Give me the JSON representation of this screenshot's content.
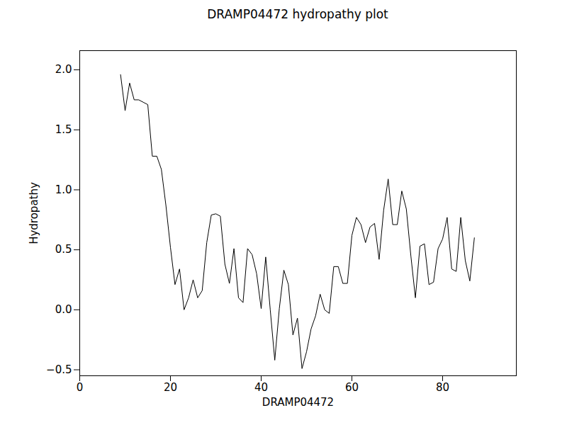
{
  "chart_data": {
    "type": "line",
    "title": "DRAMP04472 hydropathy plot",
    "xlabel": "DRAMP04472",
    "ylabel": "Hydropathy",
    "color": "#000000",
    "grid": false,
    "x": [
      9,
      10,
      11,
      12,
      13,
      14,
      15,
      16,
      17,
      18,
      19,
      20,
      21,
      22,
      23,
      24,
      25,
      26,
      27,
      28,
      29,
      30,
      31,
      32,
      33,
      34,
      35,
      36,
      37,
      38,
      39,
      40,
      41,
      42,
      43,
      44,
      45,
      46,
      47,
      48,
      49,
      50,
      51,
      52,
      53,
      54,
      55,
      56,
      57,
      58,
      59,
      60,
      61,
      62,
      63,
      64,
      65,
      66,
      67,
      68,
      69,
      70,
      71,
      72,
      73,
      74,
      75,
      76,
      77,
      78,
      79,
      80,
      81,
      82,
      83,
      84,
      85,
      86,
      87
    ],
    "values": [
      1.96,
      1.66,
      1.89,
      1.75,
      1.75,
      1.73,
      1.71,
      1.28,
      1.28,
      1.17,
      0.87,
      0.52,
      0.21,
      0.34,
      0.0,
      0.1,
      0.25,
      0.1,
      0.16,
      0.56,
      0.79,
      0.8,
      0.78,
      0.38,
      0.22,
      0.51,
      0.1,
      0.06,
      0.51,
      0.46,
      0.3,
      0.01,
      0.44,
      0.0,
      -0.42,
      0.01,
      0.33,
      0.21,
      -0.21,
      -0.07,
      -0.49,
      -0.35,
      -0.16,
      -0.05,
      0.13,
      0.0,
      -0.03,
      0.36,
      0.36,
      0.22,
      0.22,
      0.62,
      0.77,
      0.71,
      0.56,
      0.69,
      0.72,
      0.42,
      0.83,
      1.09,
      0.71,
      0.71,
      0.99,
      0.84,
      0.45,
      0.1,
      0.53,
      0.55,
      0.21,
      0.23,
      0.51,
      0.59,
      0.77,
      0.34,
      0.32,
      0.77,
      0.41,
      0.24,
      0.6
    ],
    "xlim": [
      0,
      96.25
    ],
    "xticks": [
      0,
      20,
      40,
      60,
      80
    ],
    "ylim": [
      -0.55,
      2.16
    ],
    "yticks": [
      {
        "value": -0.5,
        "label": "−0.5"
      },
      {
        "value": 0,
        "label": "0.0"
      },
      0.5,
      {
        "value": 1,
        "label": "1.0"
      },
      1.5,
      {
        "value": 2,
        "label": "2.0"
      }
    ]
  }
}
